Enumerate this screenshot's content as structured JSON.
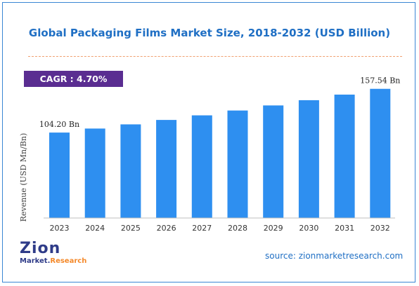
{
  "chart_data": {
    "type": "bar",
    "title": "Global Packaging Films Market Size, 2018-2032 (USD Billion)",
    "cagr": "CAGR : 4.70%",
    "ylabel": "Revenue (USD Mn/Bn)",
    "xlabel": "",
    "categories": [
      "2023",
      "2024",
      "2025",
      "2026",
      "2027",
      "2028",
      "2029",
      "2030",
      "2031",
      "2032"
    ],
    "values": [
      104.2,
      109.1,
      114.2,
      119.6,
      125.2,
      131.1,
      137.3,
      143.7,
      150.5,
      157.54
    ],
    "data_labels": [
      {
        "index": 0,
        "text": "104.20 Bn"
      },
      {
        "index": 9,
        "text": "157.54 Bn"
      }
    ],
    "ylim": [
      0,
      165
    ],
    "grid": false,
    "bar_color": "#2e8ff0"
  },
  "source": "source: zionmarketresearch.com",
  "logo": {
    "top_text": "Zion",
    "bottom_text_a": "Market.",
    "bottom_text_b": "Research",
    "colors": {
      "primary": "#2e3b88",
      "accent": "#f4892a"
    }
  }
}
